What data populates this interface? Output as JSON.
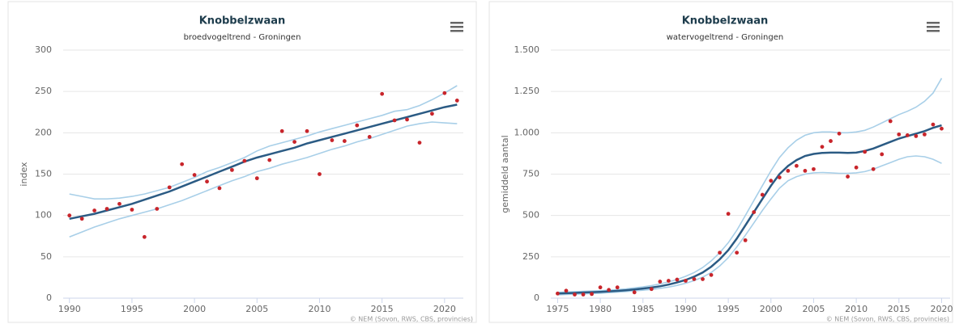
{
  "chart_data": [
    {
      "type": "line",
      "title": "Knobbelzwaan",
      "subtitle": "broedvogeltrend - Groningen",
      "y_label": "index",
      "credit": "© NEM (Sovon, RWS, CBS, provincies)",
      "x": [
        1990,
        1991,
        1992,
        1993,
        1994,
        1995,
        1996,
        1997,
        1998,
        1999,
        2000,
        2001,
        2002,
        2003,
        2004,
        2005,
        2006,
        2007,
        2008,
        2009,
        2010,
        2011,
        2012,
        2013,
        2014,
        2015,
        2016,
        2017,
        2018,
        2019,
        2020,
        2021
      ],
      "series": [
        {
          "color": "#a8cfe8",
          "values": [
            126,
            123,
            120,
            120,
            121,
            123,
            126,
            130,
            134,
            140,
            146,
            153,
            158,
            164,
            170,
            178,
            184,
            188,
            192,
            196,
            201,
            205,
            209,
            213,
            217,
            221,
            226,
            228,
            233,
            240,
            248,
            257
          ]
        },
        {
          "color": "#a8cfe8",
          "values": [
            74,
            80,
            86,
            91,
            96,
            100,
            104,
            108,
            113,
            118,
            124,
            130,
            136,
            142,
            147,
            153,
            157,
            162,
            166,
            170,
            175,
            180,
            184,
            189,
            193,
            198,
            203,
            208,
            211,
            213,
            212,
            211
          ]
        },
        {
          "color": "#2b5b84",
          "values": [
            96,
            99,
            102,
            106,
            110,
            114,
            119,
            124,
            129,
            135,
            141,
            147,
            153,
            159,
            165,
            170,
            174,
            178,
            182,
            187,
            191,
            195,
            199,
            203,
            207,
            211,
            215,
            219,
            223,
            227,
            231,
            234
          ]
        },
        {
          "color": "#c8252b",
          "marker": "dot",
          "values": [
            100,
            96,
            106,
            108,
            114,
            107,
            74,
            108,
            134,
            162,
            149,
            141,
            133,
            155,
            166,
            145,
            167,
            202,
            189,
            202,
            150,
            191,
            190,
            209,
            195,
            247,
            215,
            216,
            188,
            223,
            248,
            239
          ]
        }
      ],
      "xlim": [
        1989.5,
        2021.5
      ],
      "xticks": [
        1990,
        1995,
        2000,
        2005,
        2010,
        2015,
        2020
      ],
      "ylim": [
        0,
        300
      ],
      "yticks": [
        0,
        50,
        100,
        150,
        200,
        250,
        300
      ],
      "grid": true
    },
    {
      "type": "line",
      "title": "Knobbelzwaan",
      "subtitle": "watervogeltrend - Groningen",
      "y_label": "gemiddeld aantal",
      "credit": "© NEM (Sovon, RWS, CBS, provincies)",
      "x": [
        1975,
        1976,
        1977,
        1978,
        1979,
        1980,
        1981,
        1982,
        1983,
        1984,
        1985,
        1986,
        1987,
        1988,
        1989,
        1990,
        1991,
        1992,
        1993,
        1994,
        1995,
        1996,
        1997,
        1998,
        1999,
        2000,
        2001,
        2002,
        2003,
        2004,
        2005,
        2006,
        2007,
        2008,
        2009,
        2010,
        2011,
        2012,
        2013,
        2014,
        2015,
        2016,
        2017,
        2018,
        2019,
        2020
      ],
      "series": [
        {
          "color": "#a8cfe8",
          "values": [
            35,
            37,
            39,
            41,
            43,
            45,
            48,
            52,
            56,
            62,
            68,
            76,
            86,
            98,
            113,
            132,
            155,
            185,
            225,
            275,
            335,
            410,
            500,
            590,
            680,
            770,
            850,
            910,
            955,
            985,
            1000,
            1005,
            1005,
            1000,
            1000,
            1005,
            1015,
            1035,
            1060,
            1085,
            1110,
            1130,
            1155,
            1190,
            1240,
            1330
          ]
        },
        {
          "color": "#a8cfe8",
          "values": [
            20,
            22,
            24,
            26,
            28,
            30,
            33,
            36,
            40,
            44,
            48,
            53,
            59,
            67,
            77,
            90,
            106,
            127,
            155,
            195,
            245,
            310,
            380,
            455,
            530,
            600,
            665,
            710,
            735,
            750,
            758,
            760,
            758,
            755,
            755,
            758,
            765,
            780,
            800,
            820,
            840,
            855,
            860,
            855,
            840,
            815
          ]
        },
        {
          "color": "#2b5b84",
          "values": [
            28,
            30,
            32,
            34,
            36,
            38,
            41,
            44,
            48,
            53,
            58,
            64,
            72,
            82,
            95,
            110,
            130,
            155,
            190,
            235,
            290,
            360,
            440,
            520,
            600,
            680,
            750,
            800,
            835,
            860,
            872,
            878,
            880,
            880,
            878,
            880,
            890,
            905,
            925,
            945,
            965,
            980,
            995,
            1010,
            1030,
            1045
          ]
        },
        {
          "color": "#c8252b",
          "marker": "dot",
          "values": [
            28,
            45,
            22,
            22,
            25,
            65,
            50,
            65,
            null,
            35,
            null,
            55,
            100,
            105,
            112,
            105,
            115,
            115,
            140,
            275,
            510,
            275,
            350,
            520,
            625,
            710,
            730,
            770,
            800,
            770,
            780,
            915,
            950,
            995,
            735,
            790,
            885,
            780,
            870,
            1070,
            990,
            985,
            980,
            990,
            1050,
            1025
          ]
        }
      ],
      "xlim": [
        1974.2,
        2021
      ],
      "xticks": [
        1975,
        1980,
        1985,
        1990,
        1995,
        2000,
        2005,
        2010,
        2015,
        2020
      ],
      "ylim": [
        0,
        1500
      ],
      "yticks": [
        0,
        250,
        500,
        750,
        {
          "value": 1000,
          "label": "1.000"
        },
        {
          "value": 1250,
          "label": "1.250"
        },
        {
          "value": 1500,
          "label": "1.500"
        }
      ],
      "grid": true
    }
  ]
}
